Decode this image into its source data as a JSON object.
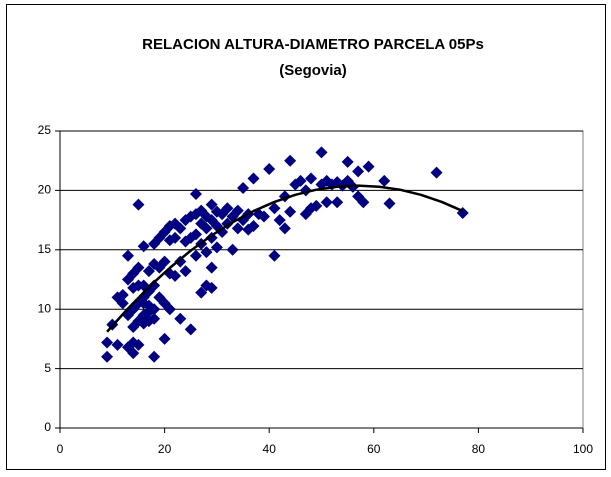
{
  "chart_data": {
    "type": "scatter",
    "title": "RELACION ALTURA-DIAMETRO PARCELA 05Ps",
    "subtitle": "(Segovia)",
    "color": "#000080",
    "x": [
      9,
      9,
      10,
      11,
      11,
      12,
      12,
      13,
      13,
      13,
      13,
      14,
      14,
      14,
      14,
      14,
      14,
      15,
      15,
      15,
      15,
      15,
      15,
      16,
      16,
      16,
      16,
      16,
      16,
      17,
      17,
      17,
      17,
      17,
      18,
      18,
      18,
      18,
      18,
      18,
      19,
      19,
      19,
      20,
      20,
      20,
      20,
      21,
      21,
      21,
      21,
      22,
      22,
      22,
      23,
      23,
      23,
      24,
      24,
      24,
      25,
      25,
      25,
      26,
      26,
      26,
      26,
      27,
      27,
      27,
      27,
      28,
      28,
      28,
      28,
      29,
      29,
      29,
      29,
      29,
      30,
      30,
      30,
      31,
      31,
      32,
      32,
      33,
      33,
      34,
      34,
      35,
      35,
      36,
      36,
      37,
      37,
      38,
      39,
      40,
      41,
      41,
      42,
      43,
      43,
      44,
      44,
      45,
      46,
      47,
      47,
      48,
      48,
      49,
      50,
      50,
      51,
      51,
      52,
      53,
      53,
      54,
      55,
      55,
      56,
      57,
      57,
      58,
      59,
      62,
      63,
      72,
      77
    ],
    "values": [
      6,
      7.2,
      8.7,
      7,
      11,
      10.5,
      11.2,
      6.8,
      9.5,
      12.5,
      14.5,
      6.3,
      7.2,
      8.5,
      10,
      11.8,
      13,
      7,
      9,
      10.5,
      12,
      13.5,
      18.8,
      8.8,
      9.5,
      10.5,
      11,
      12,
      15.3,
      9,
      9.8,
      10.3,
      11.5,
      13.2,
      6,
      9.2,
      10,
      12,
      13.8,
      15.5,
      11,
      13.5,
      16,
      7.5,
      10.5,
      14,
      16.5,
      10,
      13,
      15.8,
      17,
      12.8,
      16,
      17.2,
      9.2,
      14,
      16.8,
      13.2,
      15.7,
      17.5,
      8.3,
      16,
      17.8,
      14.5,
      16.3,
      18,
      19.7,
      11.4,
      15.5,
      17.2,
      18.3,
      12,
      14.8,
      16.8,
      17.8,
      11.8,
      13.5,
      16,
      17.5,
      18.8,
      15.2,
      17,
      18.2,
      16.5,
      18,
      17.2,
      18.5,
      15,
      17.8,
      16.8,
      18.3,
      17.5,
      20.2,
      16.7,
      18,
      17,
      21,
      18,
      17.8,
      21.8,
      14.5,
      18.5,
      17.5,
      16.8,
      19.5,
      18.2,
      22.5,
      20.5,
      20.8,
      18,
      20,
      18.5,
      21,
      18.7,
      23.2,
      20.5,
      19,
      20.8,
      20.5,
      19,
      20.7,
      20.4,
      20.8,
      22.4,
      20.3,
      21.6,
      19.5,
      19,
      22,
      20.8,
      18.9,
      21.5,
      18.1
    ],
    "trendline": {
      "color": "#000000",
      "x": [
        9,
        13,
        17,
        21,
        25,
        29,
        33,
        37,
        41,
        45,
        49,
        53,
        57,
        61,
        65,
        69,
        73,
        77
      ],
      "values": [
        8.1,
        10.06,
        11.86,
        13.48,
        14.93,
        16.21,
        17.32,
        18.26,
        19.03,
        19.63,
        20.06,
        20.31,
        20.4,
        20.31,
        20.06,
        19.63,
        19.03,
        18.26
      ]
    },
    "xlim": [
      0,
      100
    ],
    "xticks": [
      0,
      20,
      40,
      60,
      80,
      100
    ],
    "ylim": [
      0,
      25
    ],
    "yticks": [
      0,
      5,
      10,
      15,
      20,
      25
    ],
    "grid": true
  }
}
